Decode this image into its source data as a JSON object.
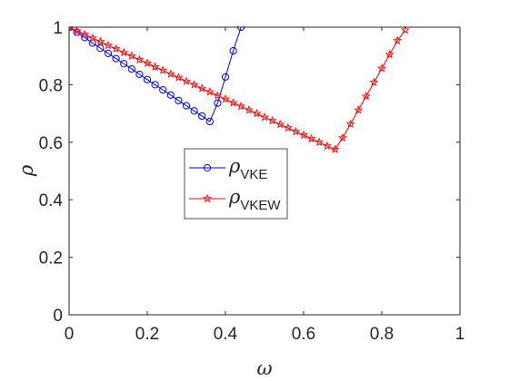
{
  "chart_data": {
    "type": "line",
    "xlabel": "ω",
    "ylabel": "ρ",
    "xlim": [
      0,
      1
    ],
    "ylim": [
      0,
      1
    ],
    "xticks": [
      "0",
      "0.2",
      "0.4",
      "0.6",
      "0.8",
      "1"
    ],
    "yticks": [
      "0",
      "0.2",
      "0.4",
      "0.6",
      "0.8",
      "1"
    ],
    "grid": false,
    "legend_position": "center",
    "series": [
      {
        "legend_symbol": "ρ",
        "legend_subscript": "VKE",
        "color": "#0000ff",
        "marker": "circle",
        "x": [
          0.0,
          0.02,
          0.04,
          0.06,
          0.08,
          0.1,
          0.12,
          0.14,
          0.16,
          0.18,
          0.2,
          0.22,
          0.24,
          0.26,
          0.28,
          0.3,
          0.32,
          0.34,
          0.36,
          0.38,
          0.4,
          0.42,
          0.44
        ],
        "y": [
          1.0,
          0.982,
          0.964,
          0.945,
          0.927,
          0.909,
          0.891,
          0.873,
          0.855,
          0.836,
          0.818,
          0.8,
          0.782,
          0.764,
          0.745,
          0.727,
          0.709,
          0.691,
          0.672,
          0.736,
          0.827,
          0.918,
          1.0
        ]
      },
      {
        "legend_symbol": "ρ",
        "legend_subscript": "VKEW",
        "color": "#ff0000",
        "marker": "star",
        "x": [
          0.0,
          0.02,
          0.04,
          0.06,
          0.08,
          0.1,
          0.12,
          0.14,
          0.16,
          0.18,
          0.2,
          0.22,
          0.24,
          0.26,
          0.28,
          0.3,
          0.32,
          0.34,
          0.36,
          0.38,
          0.4,
          0.42,
          0.44,
          0.46,
          0.48,
          0.5,
          0.52,
          0.54,
          0.56,
          0.58,
          0.6,
          0.62,
          0.64,
          0.66,
          0.68,
          0.7,
          0.72,
          0.74,
          0.76,
          0.78,
          0.8,
          0.82,
          0.84,
          0.86
        ],
        "y": [
          1.0,
          0.987,
          0.975,
          0.962,
          0.95,
          0.937,
          0.925,
          0.912,
          0.9,
          0.887,
          0.875,
          0.862,
          0.85,
          0.837,
          0.825,
          0.812,
          0.8,
          0.787,
          0.775,
          0.762,
          0.75,
          0.737,
          0.725,
          0.712,
          0.7,
          0.687,
          0.675,
          0.662,
          0.65,
          0.637,
          0.625,
          0.612,
          0.6,
          0.587,
          0.575,
          0.615,
          0.663,
          0.712,
          0.76,
          0.808,
          0.857,
          0.905,
          0.953,
          0.99
        ]
      }
    ]
  }
}
